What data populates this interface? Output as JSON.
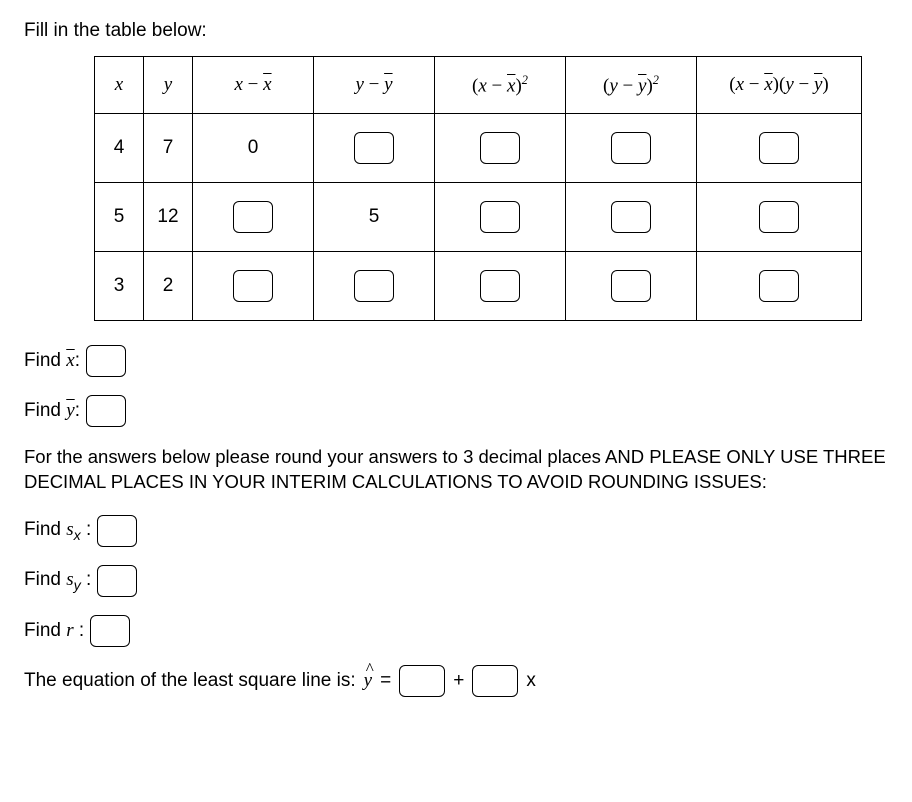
{
  "title": "Fill in the table below:",
  "table": {
    "headers": {
      "x": "x",
      "y": "y",
      "xd": "x − x̄",
      "yd": "y − ȳ",
      "xd2": "(x − x̄)²",
      "yd2": "(y − ȳ)²",
      "xy": "(x − x̄)(y − ȳ)"
    },
    "rows": [
      {
        "x": "4",
        "y": "7",
        "xd": "0",
        "yd": "",
        "xd_input": false,
        "yd_input": true
      },
      {
        "x": "5",
        "y": "12",
        "xd": "",
        "yd": "5",
        "xd_input": true,
        "yd_input": false
      },
      {
        "x": "3",
        "y": "2",
        "xd": "",
        "yd": "",
        "xd_input": true,
        "yd_input": true
      }
    ]
  },
  "finds": {
    "xbar_label": "Find x̄:",
    "ybar_label": "Find ȳ:",
    "sx_label": "Find sₓ :",
    "sy_label": "Find sᵧ :",
    "r_label": "Find r :"
  },
  "instruction": "For the answers below please round your answers to 3 decimal places AND PLEASE ONLY USE THREE DECIMAL PLACES IN YOUR INTERIM CALCULATIONS TO AVOID ROUNDING ISSUES:",
  "equation": {
    "prefix": "The equation of the least square line is:",
    "yhat": "ŷ",
    "eq": "=",
    "plus": "+",
    "x": "x"
  }
}
